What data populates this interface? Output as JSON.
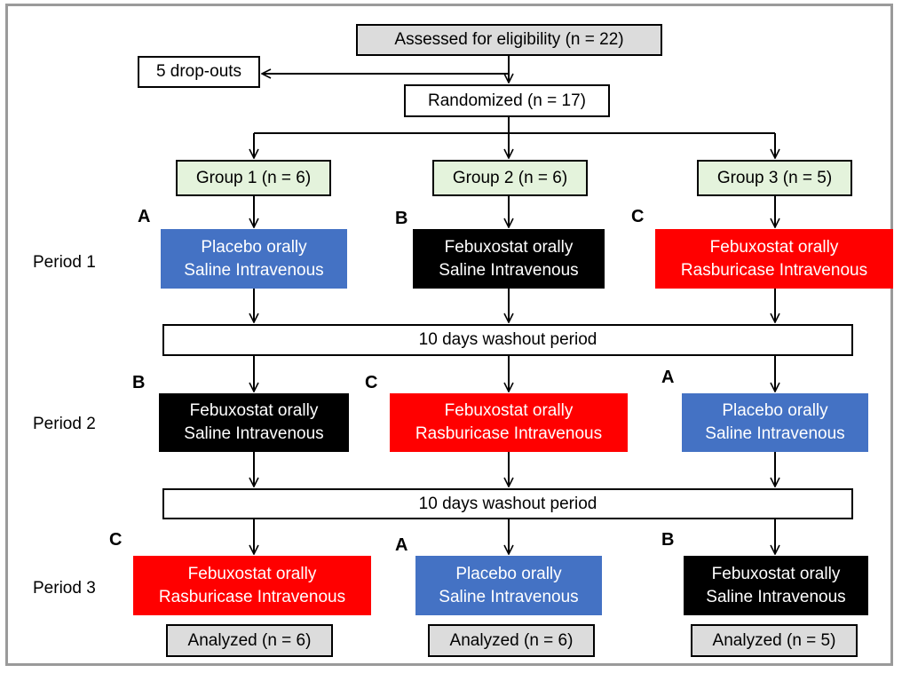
{
  "header": {
    "assessed": "Assessed for eligibility (n = 22)",
    "dropouts": "5 drop-outs",
    "randomized": "Randomized (n = 17)"
  },
  "groups": [
    "Group 1 (n = 6)",
    "Group 2 (n = 6)",
    "Group 3 (n = 5)"
  ],
  "periods": [
    "Period 1",
    "Period 2",
    "Period 3"
  ],
  "washout": [
    "10 days washout period",
    "10 days washout period"
  ],
  "treatments": {
    "A": {
      "label": "Placebo orally\nSaline Intravenous",
      "color": "#4472c4"
    },
    "B": {
      "label": "Febuxostat orally\nSaline Intravenous",
      "color": "#000000"
    },
    "C": {
      "label": "Febuxostat orally\nRasburicase Intravenous",
      "color": "#ff0000"
    }
  },
  "sequence": [
    [
      "A",
      "B",
      "C"
    ],
    [
      "B",
      "C",
      "A"
    ],
    [
      "C",
      "A",
      "B"
    ]
  ],
  "analyzed": [
    "Analyzed (n = 6)",
    "Analyzed (n = 6)",
    "Analyzed (n = 5)"
  ]
}
